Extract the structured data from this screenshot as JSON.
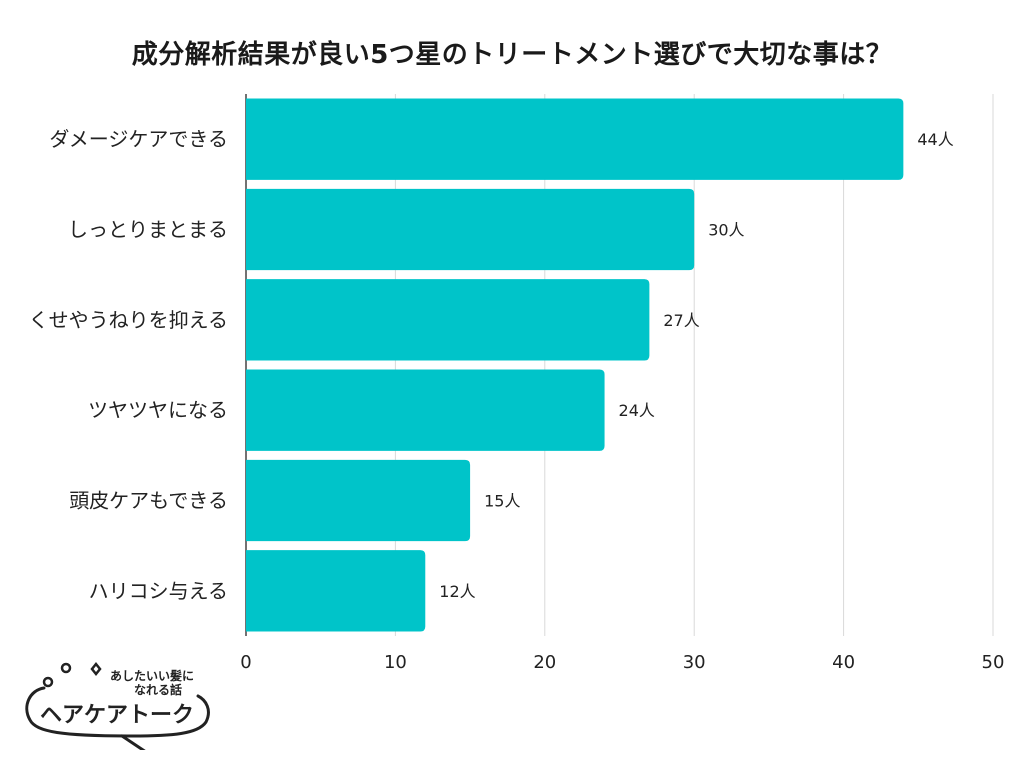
{
  "chart_data": {
    "type": "bar",
    "orientation": "horizontal",
    "title": "成分解析結果が良い5つ星のトリートメント選びで大切な事は？",
    "categories": [
      "ダメージケアできる",
      "しっとりまとまる",
      "くせやうねりを抑える",
      "ツヤツヤになる",
      "頭皮ケアもできる",
      "ハリコシ与える"
    ],
    "values": [
      44,
      30,
      27,
      24,
      15,
      12
    ],
    "value_suffix": "人",
    "xlim": [
      0,
      50
    ],
    "xticks": [
      0,
      10,
      20,
      30,
      40,
      50
    ],
    "grid": true,
    "bar_color": "#00c4c9",
    "grid_color": "#d9d9d9"
  },
  "logo": {
    "tagline_line1": "あしたいい髪に",
    "tagline_line2": "なれる話",
    "name": "ヘアケアトーク"
  }
}
